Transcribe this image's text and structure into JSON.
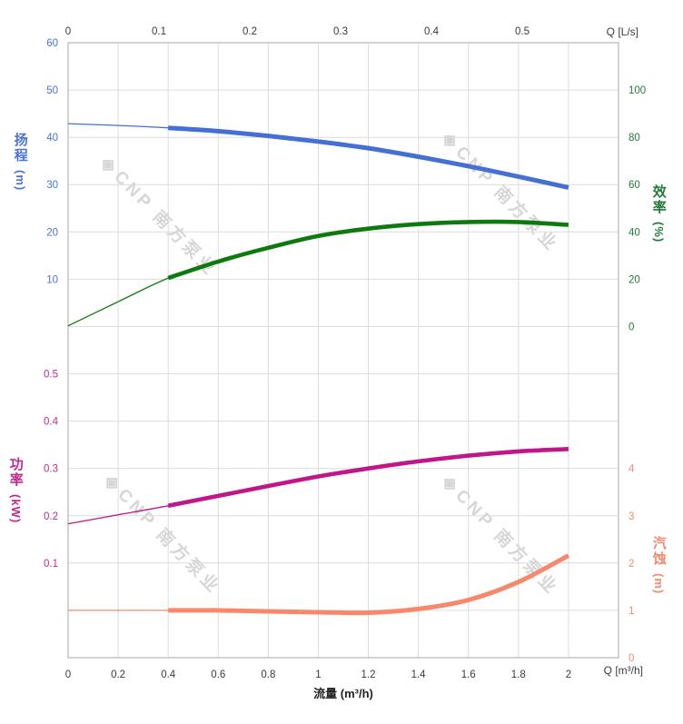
{
  "watermark": {
    "logo_glyph": "◈",
    "text": "CNP 南方泵业"
  },
  "colors": {
    "grid": "#dcdcdc",
    "border": "#b6b6b6",
    "x_axis_tick": "#444444",
    "x_axis_text": "#3a3a3a",
    "head_blue": "#4470d4",
    "eff_green_curve": "#0e7a0e",
    "eff_green_text": "#227a38",
    "power_magenta": "#c0168a",
    "npsh_salmon": "#f8886c"
  },
  "titles": {
    "q_top": "Q [L/s]",
    "q_bottom": "Q [m³/h]",
    "flow": "流量 (m³/h)",
    "head": {
      "name": "扬程",
      "unit": "(m)"
    },
    "eff": {
      "name": "效率",
      "unit": "(%)"
    },
    "power": {
      "name": "功率",
      "unit": "(kW)"
    },
    "npsh": {
      "name": "汽蚀",
      "unit": "(m)"
    }
  },
  "chart_data": {
    "type": "line",
    "title": "",
    "grid": true,
    "legend": "none",
    "axes": {
      "x_top": {
        "label": "Q [L/s]",
        "range": [
          0,
          0.606
        ],
        "minor_step": 0.033333,
        "minor_max": 0.6,
        "color": "#444444",
        "text_color": "#3a3a3a",
        "majors": [
          {
            "v": 0,
            "t": "0"
          },
          {
            "v": 0.1,
            "t": "0.1"
          },
          {
            "v": 0.2,
            "t": "0.2"
          },
          {
            "v": 0.3,
            "t": "0.3"
          },
          {
            "v": 0.4,
            "t": "0.4"
          },
          {
            "v": 0.5,
            "t": "0.5"
          }
        ]
      },
      "x_bottom": {
        "label": "流量 (m³/h)",
        "range": [
          0,
          2.2
        ],
        "minor_step": 0.04,
        "minor_max": 2.17,
        "color": "#444444",
        "text_color": "#3a3a3a",
        "majors": [
          {
            "v": 0,
            "t": "0"
          },
          {
            "v": 0.2,
            "t": "0.2"
          },
          {
            "v": 0.4,
            "t": "0.4"
          },
          {
            "v": 0.6,
            "t": "0.6"
          },
          {
            "v": 0.8,
            "t": "0.8"
          },
          {
            "v": 1,
            "t": "1"
          },
          {
            "v": 1.2,
            "t": "1.2"
          },
          {
            "v": 1.4,
            "t": "1.4"
          },
          {
            "v": 1.6,
            "t": "1.6"
          },
          {
            "v": 1.8,
            "t": "1.8"
          },
          {
            "v": 2,
            "t": "2"
          }
        ]
      },
      "head": {
        "label": "扬程 (m)",
        "range": [
          0,
          60
        ],
        "minor_step": 3.33333,
        "minor_max": 60,
        "color": "#4a74d6",
        "text_color": "#4a74d6",
        "majors": [
          {
            "v": 60,
            "t": "60"
          },
          {
            "v": 50,
            "t": "50"
          },
          {
            "v": 40,
            "t": "40"
          },
          {
            "v": 30,
            "t": "30"
          },
          {
            "v": 20,
            "t": "20"
          },
          {
            "v": 10,
            "t": "10"
          },
          {
            "v": 0,
            "t": ""
          }
        ]
      },
      "eff": {
        "label": "效率 (%)",
        "range": [
          0,
          113.4
        ],
        "minor_step": 6.66667,
        "minor_max": 113.4,
        "color": "#227a38",
        "text_color": "#227a38",
        "majors": [
          {
            "v": 100,
            "t": "100"
          },
          {
            "v": 80,
            "t": "80"
          },
          {
            "v": 60,
            "t": "60"
          },
          {
            "v": 40,
            "t": "40"
          },
          {
            "v": 20,
            "t": "20"
          },
          {
            "v": 0,
            "t": "0"
          }
        ]
      },
      "power": {
        "label": "功率 (kW)",
        "range": [
          0,
          0.567
        ],
        "minor_step": 0.033333,
        "minor_max": 0.567,
        "color": "#c32a90",
        "text_color": "#c32a90",
        "majors": [
          {
            "v": 0.5,
            "t": "0.5"
          },
          {
            "v": 0.4,
            "t": "0.4"
          },
          {
            "v": 0.3,
            "t": "0.3"
          },
          {
            "v": 0.2,
            "t": "0.2"
          },
          {
            "v": 0.1,
            "t": "0.1"
          },
          {
            "v": 0,
            "t": ""
          }
        ]
      },
      "npsh": {
        "label": "汽蚀 (m)",
        "range": [
          0,
          4.67
        ],
        "minor_step": 0.33333,
        "minor_max": 4.67,
        "color": "#f5896f",
        "text_color": "#f5896f",
        "majors": [
          {
            "v": 4,
            "t": "4"
          },
          {
            "v": 3,
            "t": "3"
          },
          {
            "v": 2,
            "t": "2"
          },
          {
            "v": 1,
            "t": "1"
          },
          {
            "v": 0,
            "t": "0"
          }
        ]
      }
    },
    "series": [
      {
        "name": "head-curve",
        "y_axis": "head",
        "color": "#4470d4",
        "thin_width": 1.3,
        "thick_width": 5,
        "split_q": 0.4,
        "points": [
          [
            0,
            42.9
          ],
          [
            0.2,
            42.5
          ],
          [
            0.4,
            42.0
          ],
          [
            0.6,
            41.3
          ],
          [
            0.8,
            40.3
          ],
          [
            1.0,
            39.1
          ],
          [
            1.2,
            37.7
          ],
          [
            1.4,
            35.9
          ],
          [
            1.6,
            33.9
          ],
          [
            1.8,
            31.7
          ],
          [
            2.0,
            29.4
          ]
        ]
      },
      {
        "name": "efficiency-curve",
        "y_axis": "eff",
        "color": "#0e7a0e",
        "thin_width": 1.3,
        "thick_width": 4.6,
        "split_q": 0.4,
        "points": [
          [
            0,
            0.3
          ],
          [
            0.2,
            10.5
          ],
          [
            0.4,
            20.5
          ],
          [
            0.6,
            27.5
          ],
          [
            0.8,
            33.3
          ],
          [
            1.0,
            38.3
          ],
          [
            1.2,
            41.4
          ],
          [
            1.4,
            43.3
          ],
          [
            1.6,
            44.2
          ],
          [
            1.8,
            44.2
          ],
          [
            2.0,
            43.0
          ]
        ]
      },
      {
        "name": "power-curve",
        "y_axis": "power",
        "color": "#c0168a",
        "thin_width": 1.3,
        "thick_width": 4.6,
        "split_q": 0.4,
        "points": [
          [
            0,
            0.183
          ],
          [
            0.2,
            0.202
          ],
          [
            0.4,
            0.221
          ],
          [
            0.6,
            0.242
          ],
          [
            0.8,
            0.263
          ],
          [
            1.0,
            0.283
          ],
          [
            1.2,
            0.3
          ],
          [
            1.4,
            0.315
          ],
          [
            1.6,
            0.327
          ],
          [
            1.8,
            0.336
          ],
          [
            2.0,
            0.341
          ]
        ]
      },
      {
        "name": "npsh-curve",
        "y_axis": "npsh",
        "color": "#f8886c",
        "thin_width": 1.3,
        "thick_width": 5,
        "split_q": 0.4,
        "points": [
          [
            0,
            1.0
          ],
          [
            0.2,
            1.0
          ],
          [
            0.4,
            1.0
          ],
          [
            0.6,
            1.0
          ],
          [
            0.8,
            0.98
          ],
          [
            1.0,
            0.96
          ],
          [
            1.2,
            0.95
          ],
          [
            1.4,
            1.03
          ],
          [
            1.6,
            1.22
          ],
          [
            1.8,
            1.6
          ],
          [
            2.0,
            2.16
          ]
        ]
      }
    ]
  }
}
